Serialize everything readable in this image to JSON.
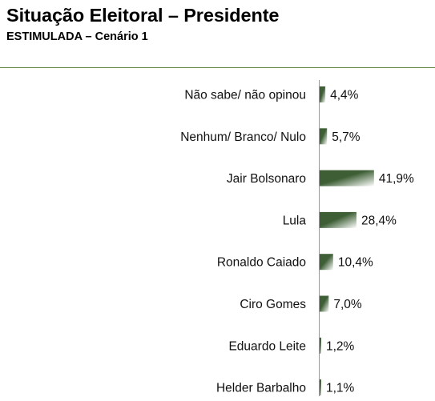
{
  "header": {
    "title": "Situação Eleitoral – Presidente",
    "subtitle": "ESTIMULADA – Cenário 1"
  },
  "colors": {
    "bar_dark": "#3e5f36",
    "bar_light": "#ffffff",
    "rule": "#6b8a4a",
    "axis": "#999999"
  },
  "chart_data": {
    "type": "bar",
    "orientation": "horizontal",
    "categories": [
      "Não sabe/ não opinou",
      "Nenhum/ Branco/ Nulo",
      "Jair Bolsonaro",
      "Lula",
      "Ronaldo Caiado",
      "Ciro Gomes",
      "Eduardo Leite",
      "Helder Barbalho"
    ],
    "values": [
      4.4,
      5.7,
      41.9,
      28.4,
      10.4,
      7.0,
      1.2,
      1.1
    ],
    "value_labels": [
      "4,4%",
      "5,7%",
      "41,9%",
      "28,4%",
      "10,4%",
      "7,0%",
      "1,2%",
      "1,1%"
    ],
    "unit": "%",
    "xlim": [
      0,
      42
    ],
    "grid": false,
    "legend": "none"
  }
}
